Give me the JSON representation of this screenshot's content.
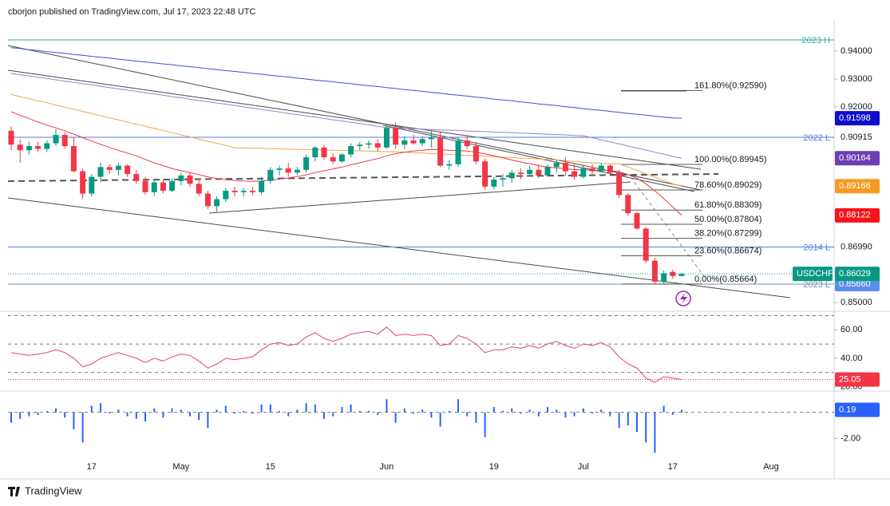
{
  "header": "cborjon published on TradingView.com, Jul 17, 2023 22:48 UTC",
  "footer": "TradingView",
  "chart_data": [
    {
      "type": "candlestick",
      "symbol": "USDCHF",
      "last_label": "0.86029",
      "up_color": "#089981",
      "down_color": "#f23645",
      "categories": [
        null,
        null,
        null,
        null,
        null,
        null,
        null,
        null,
        null,
        "17",
        null,
        null,
        null,
        null,
        null,
        null,
        null,
        null,
        null,
        "May",
        null,
        null,
        null,
        null,
        null,
        null,
        null,
        null,
        null,
        "15",
        null,
        null,
        null,
        null,
        null,
        null,
        null,
        null,
        null,
        null,
        null,
        null,
        "Jun",
        null,
        null,
        null,
        null,
        null,
        null,
        null,
        null,
        null,
        null,
        null,
        "19",
        null,
        null,
        null,
        null,
        null,
        null,
        null,
        null,
        null,
        "Jul",
        null,
        null,
        null,
        null,
        null,
        null,
        null,
        null,
        null,
        "17",
        null,
        null,
        null,
        null,
        null,
        null,
        null,
        null,
        null,
        null,
        "Aug"
      ],
      "open": [
        0.9115,
        0.9065,
        0.9045,
        0.906,
        0.905,
        0.907,
        0.91,
        0.906,
        0.897,
        0.889,
        0.895,
        0.8985,
        0.8975,
        0.899,
        0.896,
        0.8935,
        0.8895,
        0.893,
        0.89,
        0.8935,
        0.8955,
        0.8925,
        0.889,
        0.8845,
        0.887,
        0.89,
        0.8895,
        0.89,
        0.8895,
        0.8935,
        0.8975,
        0.898,
        0.8965,
        0.8975,
        0.902,
        0.9055,
        0.902,
        0.9005,
        0.903,
        0.906,
        0.9065,
        0.907,
        0.9055,
        0.9125,
        0.9065,
        0.908,
        0.907,
        0.9085,
        0.909,
        0.899,
        0.8995,
        0.908,
        0.906,
        0.9005,
        0.8915,
        0.894,
        0.8945,
        0.8965,
        0.896,
        0.8975,
        0.8955,
        0.8985,
        0.9,
        0.897,
        0.895,
        0.898,
        0.897,
        0.899,
        0.8965,
        0.8885,
        0.882,
        0.8765,
        0.865,
        0.8575,
        0.861,
        0.8595,
        null,
        null,
        null,
        null,
        null,
        null,
        null,
        null,
        null,
        null
      ],
      "high": [
        0.913,
        0.9085,
        0.9075,
        0.9075,
        0.908,
        0.912,
        0.911,
        0.909,
        0.898,
        0.896,
        0.9,
        0.8995,
        0.9,
        0.8995,
        0.8975,
        0.895,
        0.894,
        0.894,
        0.8945,
        0.8965,
        0.8965,
        0.8945,
        0.89,
        0.888,
        0.891,
        0.8915,
        0.891,
        0.8915,
        0.895,
        0.8985,
        0.899,
        0.9,
        0.8985,
        0.903,
        0.906,
        0.9065,
        0.9035,
        0.9035,
        0.907,
        0.9075,
        0.908,
        0.9085,
        0.914,
        0.9145,
        0.9095,
        0.91,
        0.9095,
        0.9115,
        0.911,
        0.901,
        0.909,
        0.91,
        0.9075,
        0.9015,
        0.895,
        0.896,
        0.8975,
        0.898,
        0.899,
        0.8995,
        0.8995,
        0.901,
        0.902,
        0.8995,
        0.899,
        0.8995,
        0.9,
        0.8995,
        0.8975,
        0.889,
        0.8825,
        0.877,
        0.866,
        0.8615,
        0.8618,
        0.8606,
        null,
        null,
        null,
        null,
        null,
        null,
        null,
        null,
        null,
        null
      ],
      "low": [
        0.9045,
        0.9,
        0.903,
        0.904,
        0.904,
        0.906,
        0.905,
        0.8965,
        0.887,
        0.888,
        0.893,
        0.896,
        0.8955,
        0.895,
        0.8925,
        0.8885,
        0.888,
        0.889,
        0.8895,
        0.892,
        0.8915,
        0.888,
        0.8835,
        0.8825,
        0.886,
        0.888,
        0.888,
        0.8885,
        0.8885,
        0.8925,
        0.8955,
        0.895,
        0.8955,
        0.8965,
        0.9005,
        0.901,
        0.8995,
        0.9,
        0.902,
        0.9045,
        0.905,
        0.904,
        0.905,
        0.905,
        0.905,
        0.9065,
        0.906,
        0.9055,
        0.8985,
        0.8975,
        0.8985,
        0.905,
        0.8995,
        0.8905,
        0.8905,
        0.8915,
        0.893,
        0.894,
        0.8955,
        0.8945,
        0.895,
        0.8965,
        0.8955,
        0.894,
        0.8945,
        0.896,
        0.8965,
        0.8955,
        0.8875,
        0.881,
        0.876,
        0.864,
        0.8567,
        0.8566,
        0.8585,
        0.8595,
        null,
        null,
        null,
        null,
        null,
        null,
        null,
        null,
        null,
        null
      ],
      "close": [
        0.9065,
        0.9045,
        0.906,
        0.905,
        0.907,
        0.91,
        0.906,
        0.897,
        0.889,
        0.895,
        0.8985,
        0.8975,
        0.899,
        0.896,
        0.8935,
        0.8895,
        0.893,
        0.89,
        0.8935,
        0.8955,
        0.8925,
        0.889,
        0.8845,
        0.887,
        0.89,
        0.8895,
        0.89,
        0.8895,
        0.8935,
        0.8975,
        0.898,
        0.8965,
        0.8975,
        0.902,
        0.9055,
        0.902,
        0.9005,
        0.903,
        0.906,
        0.9065,
        0.907,
        0.9055,
        0.9125,
        0.9065,
        0.908,
        0.907,
        0.9085,
        0.909,
        0.899,
        0.8995,
        0.908,
        0.906,
        0.9005,
        0.8915,
        0.894,
        0.8945,
        0.8965,
        0.896,
        0.8975,
        0.8955,
        0.8985,
        0.9,
        0.897,
        0.895,
        0.898,
        0.897,
        0.899,
        0.8965,
        0.8885,
        0.882,
        0.8765,
        0.865,
        0.8575,
        0.8605,
        0.8595,
        0.86029,
        null,
        null,
        null,
        null,
        null,
        null,
        null,
        null,
        null,
        null
      ],
      "ylim": [
        0.8469,
        0.9497
      ],
      "yticks": [
        {
          "value": 0.94,
          "label": "0.94000"
        },
        {
          "value": 0.93,
          "label": "0.93000"
        },
        {
          "value": 0.92,
          "label": "0.92000"
        },
        {
          "value": 0.85,
          "label": "0.85000"
        }
      ],
      "moving_averages": [
        {
          "color": "#3d4fd6",
          "label_color": "#0d0dcc",
          "last_label": "0.91598",
          "values": [
            0.9412,
            0.9409,
            0.9405,
            0.9402,
            0.9398,
            0.9395,
            0.9392,
            0.9388,
            0.9385,
            0.9381,
            0.9378,
            0.9375,
            0.9371,
            0.9368,
            0.9364,
            0.9361,
            0.9358,
            0.9354,
            0.9351,
            0.9347,
            0.9344,
            0.9341,
            0.9337,
            0.9334,
            0.933,
            0.9327,
            0.9324,
            0.932,
            0.9317,
            0.9313,
            0.931,
            0.9307,
            0.9303,
            0.93,
            0.9296,
            0.9293,
            0.929,
            0.9286,
            0.9283,
            0.9279,
            0.9276,
            0.9273,
            0.9269,
            0.9266,
            0.9262,
            0.9259,
            0.9256,
            0.9252,
            0.9249,
            0.9245,
            0.9242,
            0.9239,
            0.9235,
            0.9232,
            0.9228,
            0.9225,
            0.9222,
            0.9218,
            0.9215,
            0.9211,
            0.9208,
            0.9205,
            0.9201,
            0.9198,
            0.9194,
            0.9191,
            0.9188,
            0.9184,
            0.9181,
            0.9177,
            0.9174,
            0.9171,
            0.9167,
            0.9164,
            0.9161,
            0.91598,
            null,
            null,
            null,
            null,
            null,
            null,
            null,
            null,
            null,
            null
          ]
        },
        {
          "color": "#9c7fd0",
          "label_color": "#6a3fb5",
          "last_label": "0.90164",
          "values": [
            0.932,
            0.9315,
            0.9311,
            0.9306,
            0.9302,
            0.9297,
            0.9292,
            0.9288,
            0.9283,
            0.9279,
            0.9274,
            0.9269,
            0.9265,
            0.926,
            0.9256,
            0.9251,
            0.9246,
            0.9242,
            0.9237,
            0.9233,
            0.9228,
            0.9223,
            0.9219,
            0.9214,
            0.921,
            0.9205,
            0.92,
            0.9196,
            0.9191,
            0.9187,
            0.9182,
            0.9177,
            0.9173,
            0.9168,
            0.9164,
            0.9159,
            0.9154,
            0.915,
            0.9145,
            0.9141,
            0.9136,
            0.9131,
            0.9126,
            0.9125,
            0.9123,
            0.9122,
            0.9121,
            0.9119,
            0.9118,
            0.9117,
            0.9116,
            0.9114,
            0.9113,
            0.9112,
            0.911,
            0.9109,
            0.9108,
            0.9106,
            0.9105,
            0.9104,
            0.9102,
            0.9101,
            0.91,
            0.9098,
            0.9097,
            0.909,
            0.9082,
            0.9075,
            0.9068,
            0.906,
            0.9053,
            0.9046,
            0.9038,
            0.9031,
            0.9023,
            0.90164,
            null,
            null,
            null,
            null,
            null,
            null,
            null,
            null,
            null,
            null
          ]
        },
        {
          "color": "#f7a144",
          "label_color": "#f59a23",
          "last_label": "0.89166",
          "values": [
            0.9245,
            0.9237,
            0.923,
            0.9222,
            0.9215,
            0.9207,
            0.9199,
            0.9192,
            0.9184,
            0.9177,
            0.9169,
            0.9161,
            0.9154,
            0.9146,
            0.9138,
            0.9131,
            0.9123,
            0.9116,
            0.9108,
            0.91,
            0.9093,
            0.9085,
            0.9077,
            0.907,
            0.9062,
            0.9054,
            0.9053,
            0.9052,
            0.9052,
            0.9051,
            0.905,
            0.9049,
            0.9048,
            0.9048,
            0.9047,
            0.9046,
            0.9045,
            0.9044,
            0.9044,
            0.9043,
            0.9042,
            0.9041,
            0.904,
            0.904,
            0.9038,
            0.9036,
            0.9035,
            0.9033,
            0.9032,
            0.903,
            0.9028,
            0.9027,
            0.9025,
            0.9024,
            0.9022,
            0.902,
            0.9019,
            0.9017,
            0.9016,
            0.9014,
            0.9012,
            0.9011,
            0.9008,
            0.9005,
            0.9002,
            0.9,
            0.8998,
            0.8997,
            0.8997,
            0.8985,
            0.8973,
            0.8961,
            0.8949,
            0.8937,
            0.8925,
            0.89166,
            null,
            null,
            null,
            null,
            null,
            null,
            null,
            null,
            null,
            null
          ]
        },
        {
          "color": "#f23645",
          "label_color": "#f7131c",
          "last_label": "0.88122",
          "values": [
            0.9183,
            0.917,
            0.9158,
            0.9146,
            0.9135,
            0.9125,
            0.9115,
            0.9103,
            0.909,
            0.9078,
            0.9066,
            0.9055,
            0.9045,
            0.9035,
            0.9025,
            0.9012,
            0.9,
            0.899,
            0.898,
            0.8972,
            0.8965,
            0.8958,
            0.895,
            0.8944,
            0.894,
            0.8937,
            0.8935,
            0.8934,
            0.8935,
            0.8938,
            0.8942,
            0.8946,
            0.8951,
            0.8957,
            0.8965,
            0.8972,
            0.8978,
            0.8985,
            0.8993,
            0.9,
            0.9008,
            0.9015,
            0.9025,
            0.9033,
            0.9038,
            0.9042,
            0.9045,
            0.9048,
            0.9047,
            0.9045,
            0.9044,
            0.9042,
            0.9038,
            0.9032,
            0.9025,
            0.9018,
            0.901,
            0.9003,
            0.8997,
            0.899,
            0.8985,
            0.8982,
            0.8979,
            0.8976,
            0.8975,
            0.8974,
            0.8974,
            0.8973,
            0.8968,
            0.8958,
            0.8945,
            0.8925,
            0.89,
            0.8872,
            0.8842,
            0.88122,
            null,
            null,
            null,
            null,
            null,
            null,
            null,
            null,
            null,
            null
          ]
        }
      ],
      "levels": [
        {
          "label": "2023 H",
          "value": 0.944,
          "color": "#3fa89a"
        },
        {
          "label": "2022 L",
          "value": 0.90915,
          "color": "#4a7fe0",
          "axis_label": "0.90915"
        },
        {
          "label": "2014 L",
          "value": 0.8699,
          "color": "#4a7fe0",
          "axis_label": "0.86990"
        },
        {
          "label": "2023 L",
          "value": 0.8566,
          "color": "#7a8bb0",
          "axis_label": "0.85660",
          "axis_box": "#5b8ee6"
        }
      ],
      "fib_levels": [
        {
          "value": 0.9259,
          "label": "161.80%(0.92590)"
        },
        {
          "value": 0.89945,
          "label": "100.00%(0.89945)"
        },
        {
          "value": 0.89029,
          "label": "78.60%(0.89029)"
        },
        {
          "value": 0.88309,
          "label": "61.80%(0.88309)"
        },
        {
          "value": 0.87804,
          "label": "50.00%(0.87804)"
        },
        {
          "value": 0.87299,
          "label": "38.20%(0.87299)"
        },
        {
          "value": 0.86674,
          "label": "23.60%(0.86674)"
        },
        {
          "value": 0.85664,
          "label": "0.00%(0.85664)"
        }
      ]
    },
    {
      "type": "line",
      "color": "#e0407a",
      "last_label": "25.05",
      "label_color": "#f23645",
      "values": [
        44,
        43,
        42,
        43,
        44,
        46,
        44,
        40,
        34,
        36,
        40,
        42,
        44,
        42,
        40,
        37,
        40,
        38,
        41,
        43,
        42,
        38,
        33,
        36,
        40,
        39,
        40,
        41,
        46,
        50,
        51,
        49,
        50,
        55,
        58,
        54,
        52,
        54,
        57,
        58,
        59,
        57,
        62,
        56,
        57,
        56,
        57,
        56,
        49,
        50,
        56,
        54,
        50,
        44,
        46,
        46,
        48,
        47,
        49,
        47,
        50,
        52,
        49,
        47,
        50,
        49,
        51,
        48,
        41,
        36,
        33,
        26,
        23,
        27,
        26,
        25.05,
        null,
        null,
        null,
        null,
        null,
        null,
        null,
        null,
        null,
        null
      ],
      "ylim": [
        18,
        72
      ],
      "yticks": [
        {
          "value": 60,
          "label": "60.00"
        },
        {
          "value": 40,
          "label": "40.00"
        },
        {
          "value": 20,
          "label": "20.00"
        }
      ],
      "levels": [
        70,
        50,
        30
      ]
    },
    {
      "type": "bar",
      "color": "#2962ff",
      "last_label": "0.19",
      "values": [
        -0.8,
        -0.5,
        -0.3,
        -0.2,
        0.1,
        0.3,
        -0.4,
        -1.3,
        -2.3,
        0.5,
        0.7,
        -0.1,
        0.2,
        -0.3,
        -0.5,
        -0.7,
        0.3,
        -0.4,
        0.3,
        0.2,
        -0.3,
        -0.6,
        -1.2,
        0.2,
        0.5,
        -0.1,
        0.1,
        -0.1,
        0.6,
        0.6,
        0.1,
        -0.3,
        0.2,
        0.7,
        0.6,
        -0.5,
        -0.3,
        0.4,
        0.6,
        0.1,
        0.1,
        -0.2,
        1.0,
        -0.8,
        0.3,
        -0.1,
        0.2,
        -0.4,
        -1.1,
        0.1,
        1.0,
        -0.3,
        -0.8,
        -1.9,
        0.4,
        0.1,
        0.3,
        -0.1,
        0.2,
        -0.3,
        0.4,
        0.2,
        -0.4,
        -0.3,
        0.3,
        -0.1,
        0.2,
        -0.3,
        -1.2,
        -1.0,
        -1.5,
        -2.3,
        -3.1,
        0.5,
        -0.2,
        0.19,
        null,
        null,
        null,
        null,
        null,
        null,
        null,
        null,
        null,
        null
      ],
      "ylim": [
        -4.6,
        1.5
      ],
      "yticks": [
        {
          "value": -2,
          "label": "-2.00"
        }
      ]
    }
  ]
}
